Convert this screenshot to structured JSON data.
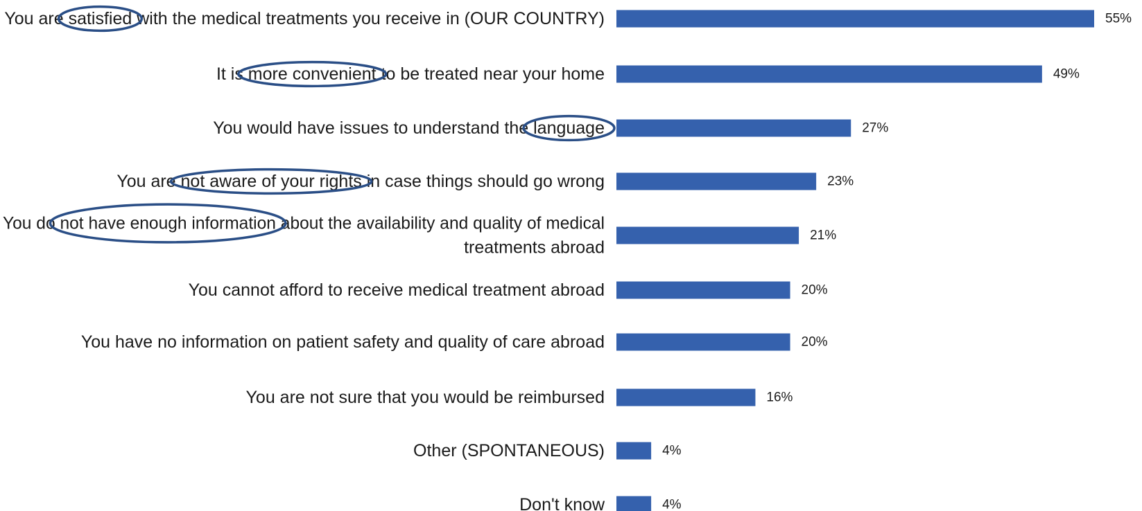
{
  "colors": {
    "bar": "#3561ad",
    "highlight_ellipse": "#2a4e86",
    "text": "#1a1a1a"
  },
  "chart_data": {
    "type": "bar",
    "orientation": "horizontal",
    "title": "",
    "xlabel": "",
    "ylabel": "",
    "xlim": [
      0,
      55
    ],
    "grid": false,
    "categories": [
      [
        "You are satisfied with the medical treatments you receive in (OUR COUNTRY)"
      ],
      [
        "It is more convenient to be treated near your home"
      ],
      [
        "You would have issues to understand the language"
      ],
      [
        "You are not aware of your rights in case things should go wrong"
      ],
      [
        "You do not have enough information about the availability and quality of medical",
        "treatments abroad"
      ],
      [
        "You cannot afford to receive medical treatment abroad"
      ],
      [
        "You have no information on patient safety and quality of care abroad"
      ],
      [
        "You are not sure that you would be reimbursed"
      ],
      [
        "Other (SPONTANEOUS)"
      ],
      [
        "Don't know"
      ]
    ],
    "values": [
      55,
      49,
      27,
      23,
      21,
      20,
      20,
      16,
      4,
      4
    ],
    "value_labels": [
      "55%",
      "49%",
      "27%",
      "23%",
      "21%",
      "20%",
      "20%",
      "16%",
      "4%",
      "4%"
    ],
    "highlighted_phrases": [
      "satisfied",
      "more convenient",
      "language",
      "not aware of your rights",
      "not have enough information"
    ]
  }
}
